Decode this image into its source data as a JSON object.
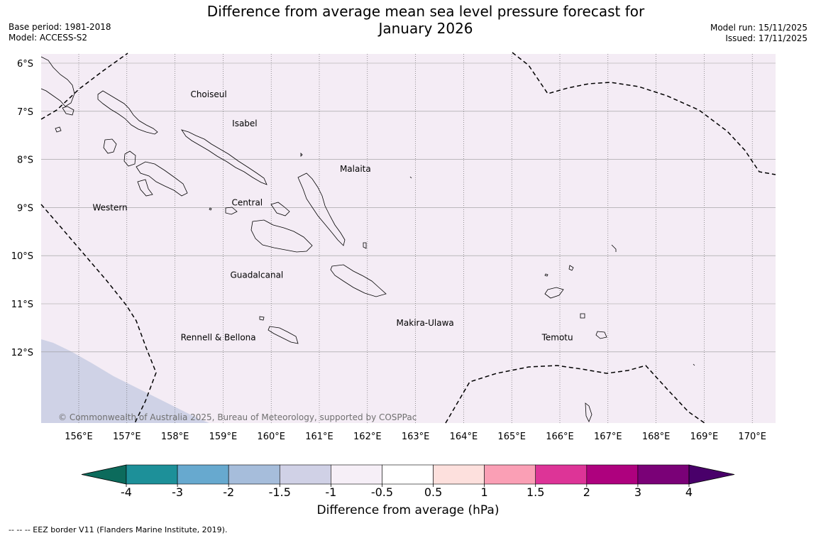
{
  "header": {
    "title": "Difference from average mean sea level pressure forecast for\nJanuary 2026",
    "base_period": "Base period: 1981-2018",
    "model": "Model: ACCESS-S2",
    "model_run": "Model run: 15/11/2025",
    "issued": "Issued: 17/11/2025"
  },
  "map": {
    "lat_labels": [
      "6°S",
      "7°S",
      "8°S",
      "9°S",
      "10°S",
      "11°S",
      "12°S"
    ],
    "lat_values": [
      -6,
      -7,
      -8,
      -9,
      -10,
      -11,
      -12
    ],
    "lon_labels": [
      "156°E",
      "157°E",
      "158°E",
      "159°E",
      "160°E",
      "161°E",
      "162°E",
      "163°E",
      "164°E",
      "165°E",
      "166°E",
      "167°E",
      "168°E",
      "169°E",
      "170°E"
    ],
    "lon_values": [
      156,
      157,
      158,
      159,
      160,
      161,
      162,
      163,
      164,
      165,
      166,
      167,
      168,
      169,
      170
    ],
    "extent": {
      "lon_min": 155.2,
      "lon_max": 170.5,
      "lat_min": -13.5,
      "lat_max": -5.8
    },
    "regions": [
      {
        "name": "Choiseul",
        "lon": 158.7,
        "lat": -6.65
      },
      {
        "name": "Isabel",
        "lon": 159.45,
        "lat": -7.25
      },
      {
        "name": "Malaita",
        "lon": 161.75,
        "lat": -8.2
      },
      {
        "name": "Western",
        "lon": 156.65,
        "lat": -9.0
      },
      {
        "name": "Central",
        "lon": 159.5,
        "lat": -8.9
      },
      {
        "name": "Guadalcanal",
        "lon": 159.7,
        "lat": -10.4
      },
      {
        "name": "Makira-Ulawa",
        "lon": 163.2,
        "lat": -11.4
      },
      {
        "name": "Rennell & Bellona",
        "lon": 158.9,
        "lat": -11.7
      },
      {
        "name": "Temotu",
        "lon": 165.95,
        "lat": -11.7
      }
    ],
    "copyright": "© Commonwealth of Australia 2025, Bureau of Meteorology, supported by COSPPac",
    "background_color": "#f4ecf5",
    "lower_left_color": "#cfd2e6"
  },
  "colorbar": {
    "title": "Difference from average (hPa)",
    "tick_labels": [
      "-4",
      "-3",
      "-2",
      "-1.5",
      "-1",
      "-0.5",
      "0.5",
      "1",
      "1.5",
      "2",
      "3",
      "4"
    ],
    "colors": [
      "#0c6b5c",
      "#1d9099",
      "#67a9cf",
      "#a6bddb",
      "#d0d1e6",
      "#f6eff7",
      "#ffffff",
      "#fde0dd",
      "#fa9fb5",
      "#dd3497",
      "#ae017e",
      "#7a0177",
      "#49006a"
    ]
  },
  "legend_note": "--  --  -- EEZ border V11 (Flanders Marine Institute, 2019)."
}
